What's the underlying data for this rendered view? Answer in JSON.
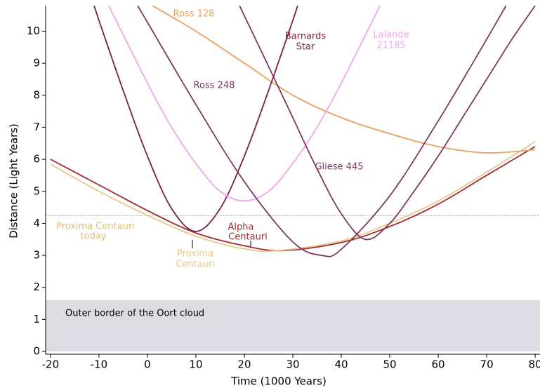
{
  "chart_data": {
    "type": "line",
    "x_label": "Time (1000 Years)",
    "y_label": "Distance (Light Years)",
    "xlim": [
      -21,
      81
    ],
    "ylim": [
      0,
      10.8
    ],
    "xticks": [
      -20,
      -10,
      0,
      10,
      20,
      30,
      40,
      50,
      60,
      70,
      80
    ],
    "yticks": [
      0,
      1,
      2,
      3,
      4,
      5,
      6,
      7,
      8,
      9,
      10
    ],
    "band": {
      "range": [
        0,
        1.6
      ],
      "color": "#dcdce2",
      "label": "Outer border of the Oort cloud"
    },
    "reference_line": {
      "value": 4.24,
      "color": "#e0c070",
      "label": [
        "Proxima Centauri",
        "today"
      ]
    },
    "series": [
      {
        "label": [
          "Alpha",
          "Centauri"
        ],
        "color": "#9e2b2f",
        "x": [
          -20,
          -10,
          0,
          10,
          20,
          28,
          40,
          50,
          60,
          70,
          80
        ],
        "values": [
          6.0,
          5.2,
          4.4,
          3.7,
          3.3,
          3.15,
          3.4,
          3.9,
          4.6,
          5.5,
          6.4
        ]
      },
      {
        "label": [
          "Proxima",
          "Centauri"
        ],
        "color": "#e8c88a",
        "x": [
          -20,
          -10,
          0,
          10,
          20,
          27,
          40,
          50,
          60,
          70,
          80
        ],
        "values": [
          5.85,
          5.0,
          4.25,
          3.6,
          3.2,
          3.15,
          3.45,
          4.0,
          4.7,
          5.6,
          6.55
        ]
      },
      {
        "label": [
          "Ross 128"
        ],
        "color": "#e9a060",
        "x": [
          1,
          10,
          20,
          30,
          40,
          50,
          60,
          70,
          80
        ],
        "values": [
          10.8,
          10.0,
          9.0,
          8.0,
          7.3,
          6.8,
          6.4,
          6.2,
          6.3
        ]
      },
      {
        "label": [
          "Barnards",
          "Star"
        ],
        "color": "#7a1f45",
        "x": [
          -11,
          -10,
          -5,
          0,
          5,
          10,
          15,
          20,
          25,
          30,
          31
        ],
        "values": [
          10.8,
          10.34,
          8.15,
          6.1,
          4.46,
          3.75,
          4.46,
          6.1,
          8.15,
          10.34,
          10.8
        ]
      },
      {
        "label": [
          "Lalande",
          "21185"
        ],
        "color": "#f2a6ea",
        "x": [
          -8,
          0,
          5,
          10,
          15,
          20,
          25,
          30,
          35,
          40,
          48
        ],
        "values": [
          10.8,
          8.38,
          7.0,
          5.87,
          5.0,
          4.7,
          5.0,
          5.87,
          7.0,
          8.38,
          10.8
        ]
      },
      {
        "label": [
          "Ross 248"
        ],
        "color": "#7a3a60",
        "x": [
          -2,
          0,
          10,
          20,
          30,
          36,
          40,
          50,
          60,
          70,
          74
        ],
        "values": [
          10.8,
          10.28,
          7.71,
          5.3,
          3.42,
          3.0,
          3.19,
          4.86,
          7.2,
          9.75,
          10.8
        ]
      },
      {
        "label": [
          "Gliese 445"
        ],
        "color": "#7a3a60",
        "x": [
          19,
          25,
          30,
          35,
          40,
          45,
          50,
          55,
          60,
          65,
          70,
          75,
          80
        ],
        "values": [
          10.8,
          8.9,
          7.3,
          5.7,
          4.3,
          3.5,
          4.0,
          5.0,
          6.1,
          7.3,
          8.5,
          9.7,
          10.8
        ]
      }
    ]
  }
}
